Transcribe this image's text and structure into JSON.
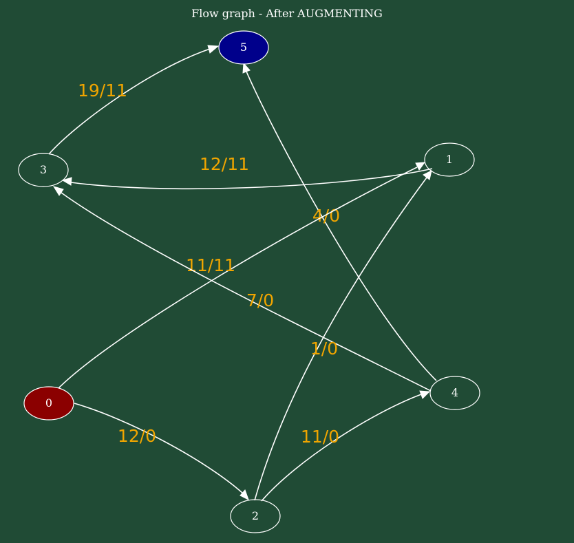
{
  "title": "Flow graph - After AUGMENTING",
  "colors": {
    "background": "#204b35",
    "source_fill": "#8b0000",
    "sink_fill": "#00008b",
    "label": "#f0a500",
    "stroke": "#ffffff"
  },
  "nodes": [
    {
      "id": "0",
      "label": "0",
      "role": "source"
    },
    {
      "id": "1",
      "label": "1",
      "role": "normal"
    },
    {
      "id": "2",
      "label": "2",
      "role": "normal"
    },
    {
      "id": "3",
      "label": "3",
      "role": "normal"
    },
    {
      "id": "4",
      "label": "4",
      "role": "normal"
    },
    {
      "id": "5",
      "label": "5",
      "role": "sink"
    }
  ],
  "edges": [
    {
      "from": "3",
      "to": "5",
      "label": "19/11"
    },
    {
      "from": "1",
      "to": "3",
      "label": "12/11"
    },
    {
      "from": "4",
      "to": "5",
      "label": "4/0"
    },
    {
      "from": "0",
      "to": "1",
      "label": "11/11"
    },
    {
      "from": "4",
      "to": "3",
      "label": "7/0"
    },
    {
      "from": "2",
      "to": "1",
      "label": "1/0"
    },
    {
      "from": "0",
      "to": "2",
      "label": "12/0"
    },
    {
      "from": "2",
      "to": "4",
      "label": "11/0"
    }
  ]
}
